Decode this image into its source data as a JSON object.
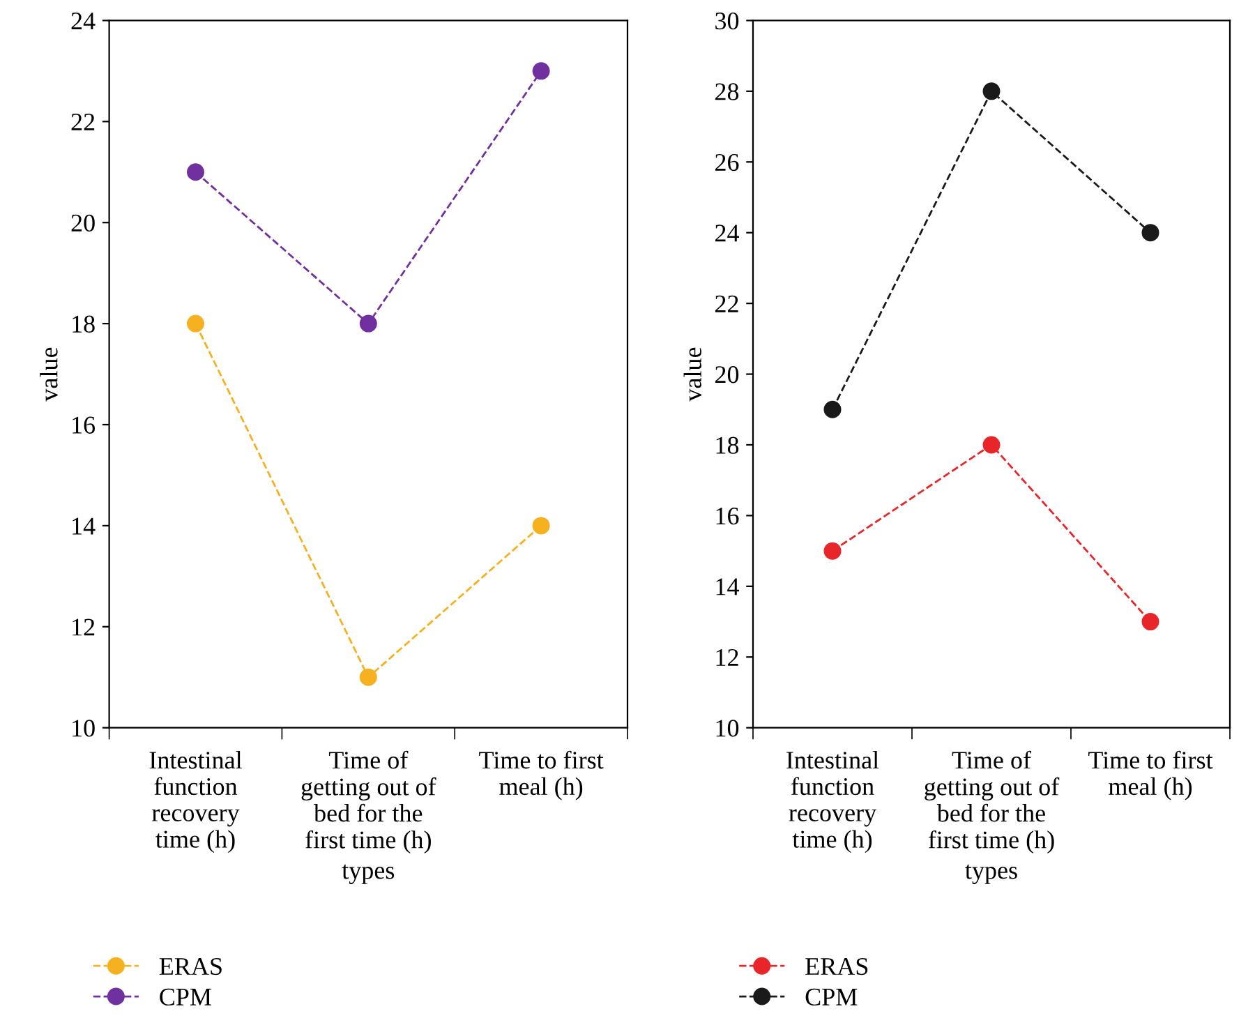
{
  "chart_data": [
    {
      "type": "line",
      "categories": [
        "Intestinal\nfunction\nrecovery\ntime (h)",
        "Time of\ngetting out of\nbed for the\nfirst time (h)",
        "Time to first\nmeal (h)"
      ],
      "xlabel": "types",
      "ylabel": "value",
      "ylim": [
        10,
        24
      ],
      "yticks": [
        10,
        12,
        14,
        16,
        18,
        20,
        22,
        24
      ],
      "marker": "circle",
      "line_style": "dashed",
      "legend": "bottom left",
      "grid": false,
      "series": [
        {
          "name": "ERAS",
          "color": "#f5b120",
          "values": [
            18,
            11,
            14
          ]
        },
        {
          "name": "CPM",
          "color": "#7030a0",
          "values": [
            21,
            18,
            23
          ]
        }
      ]
    },
    {
      "type": "line",
      "categories": [
        "Intestinal\nfunction\nrecovery\ntime (h)",
        "Time of\ngetting out of\nbed for the\nfirst time (h)",
        "Time to first\nmeal (h)"
      ],
      "xlabel": "types",
      "ylabel": "value",
      "ylim": [
        10,
        30
      ],
      "yticks": [
        10,
        12,
        14,
        16,
        18,
        20,
        22,
        24,
        26,
        28,
        30
      ],
      "marker": "circle",
      "line_style": "dashed",
      "legend": "bottom left",
      "grid": false,
      "series": [
        {
          "name": "ERAS",
          "color": "#e8262a",
          "values": [
            15,
            18,
            13
          ]
        },
        {
          "name": "CPM",
          "color": "#1a1a1a",
          "values": [
            19,
            28,
            24
          ]
        }
      ]
    }
  ]
}
